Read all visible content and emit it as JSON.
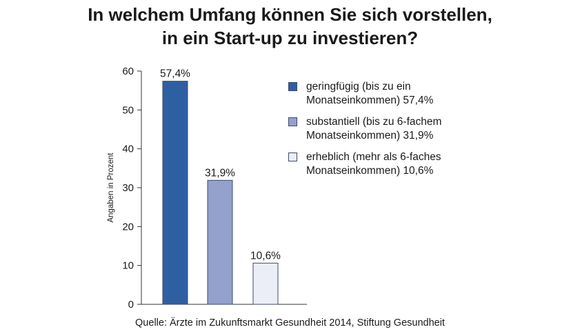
{
  "title_lines": [
    "In welchem Umfang können Sie sich vorstellen,",
    "in ein Start-up zu investieren?"
  ],
  "legend": [
    {
      "line1": "geringfügig (bis zu ein",
      "line2": "Monatseinkommen) 57,4%",
      "color": "#2e5fa3"
    },
    {
      "line1": "substantiell (bis zu 6-fachem",
      "line2": "Monatseinkommen) 31,9%",
      "color": "#93a1cc"
    },
    {
      "line1": "erheblich (mehr als 6-faches",
      "line2": "Monatseinkommen) 10,6%",
      "color": "#eceef7"
    }
  ],
  "source": "Quelle:  Ärzte im Zukunftsmarkt Gesundheit 2014, Stiftung Gesundheit",
  "chart_data": {
    "type": "bar",
    "categories": [
      "geringfügig (bis zu ein Monatseinkommen)",
      "substantiell (bis zu 6-fachem Monatseinkommen)",
      "erheblich (mehr als 6-faches Monatseinkommen)"
    ],
    "values": [
      57.4,
      31.9,
      10.6
    ],
    "value_labels": [
      "57,4%",
      "31,9%",
      "10,6%"
    ],
    "colors": [
      "#2e5fa3",
      "#93a1cc",
      "#eceef7"
    ],
    "ylabel": "Angaben in Prozent",
    "ylim": [
      0,
      60
    ],
    "yticks": [
      0,
      10,
      20,
      30,
      40,
      50,
      60
    ],
    "grid": false,
    "legend_position": "right"
  }
}
